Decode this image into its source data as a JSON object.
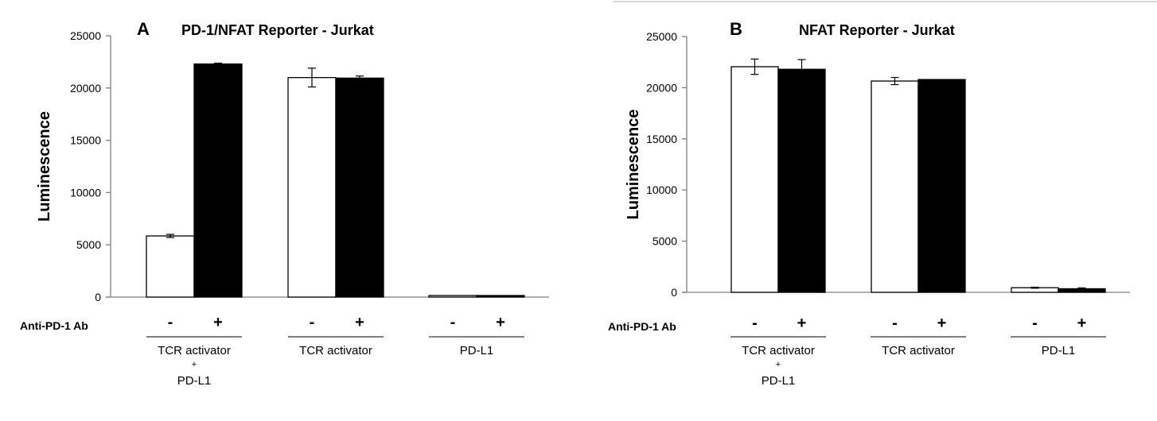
{
  "chart_data": [
    {
      "type": "bar",
      "panel_label": "A",
      "title": "PD-1/NFAT Reporter - Jurkat",
      "ylabel": "Luminescence",
      "ylim": [
        0,
        25000
      ],
      "yticks": [
        "0",
        "5000",
        "10000",
        "15000",
        "20000",
        "25000"
      ],
      "treatment_label": "Anti-PD-1 Ab",
      "categories": [
        {
          "label_lines": [
            "TCR activator",
            "+",
            "PD-L1"
          ],
          "minus": "-",
          "plus": "+"
        },
        {
          "label_lines": [
            "TCR activator"
          ],
          "minus": "-",
          "plus": "+"
        },
        {
          "label_lines": [
            "PD-L1"
          ],
          "minus": "-",
          "plus": "+"
        }
      ],
      "series": [
        {
          "treatment": "-",
          "color": "#ffffff",
          "values": [
            5850,
            21000,
            150
          ],
          "errors": [
            150,
            900,
            0
          ]
        },
        {
          "treatment": "+",
          "color": "#000000",
          "values": [
            22300,
            20950,
            150
          ],
          "errors": [
            80,
            200,
            0
          ]
        }
      ],
      "grid": false,
      "legend": "none"
    },
    {
      "type": "bar",
      "panel_label": "B",
      "title": "NFAT Reporter - Jurkat",
      "ylabel": "Luminescence",
      "ylim": [
        0,
        25000
      ],
      "yticks": [
        "0",
        "5000",
        "10000",
        "15000",
        "20000",
        "25000"
      ],
      "treatment_label": "Anti-PD-1 Ab",
      "categories": [
        {
          "label_lines": [
            "TCR activator",
            "+",
            "PD-L1"
          ],
          "minus": "-",
          "plus": "+"
        },
        {
          "label_lines": [
            "TCR activator"
          ],
          "minus": "-",
          "plus": "+"
        },
        {
          "label_lines": [
            "PD-L1"
          ],
          "minus": "-",
          "plus": "+"
        }
      ],
      "series": [
        {
          "treatment": "-",
          "color": "#ffffff",
          "values": [
            22050,
            20650,
            450
          ],
          "errors": [
            750,
            350,
            50
          ]
        },
        {
          "treatment": "+",
          "color": "#000000",
          "values": [
            21800,
            20800,
            350
          ],
          "errors": [
            950,
            0,
            80
          ]
        }
      ],
      "grid": false,
      "legend": "none"
    }
  ]
}
